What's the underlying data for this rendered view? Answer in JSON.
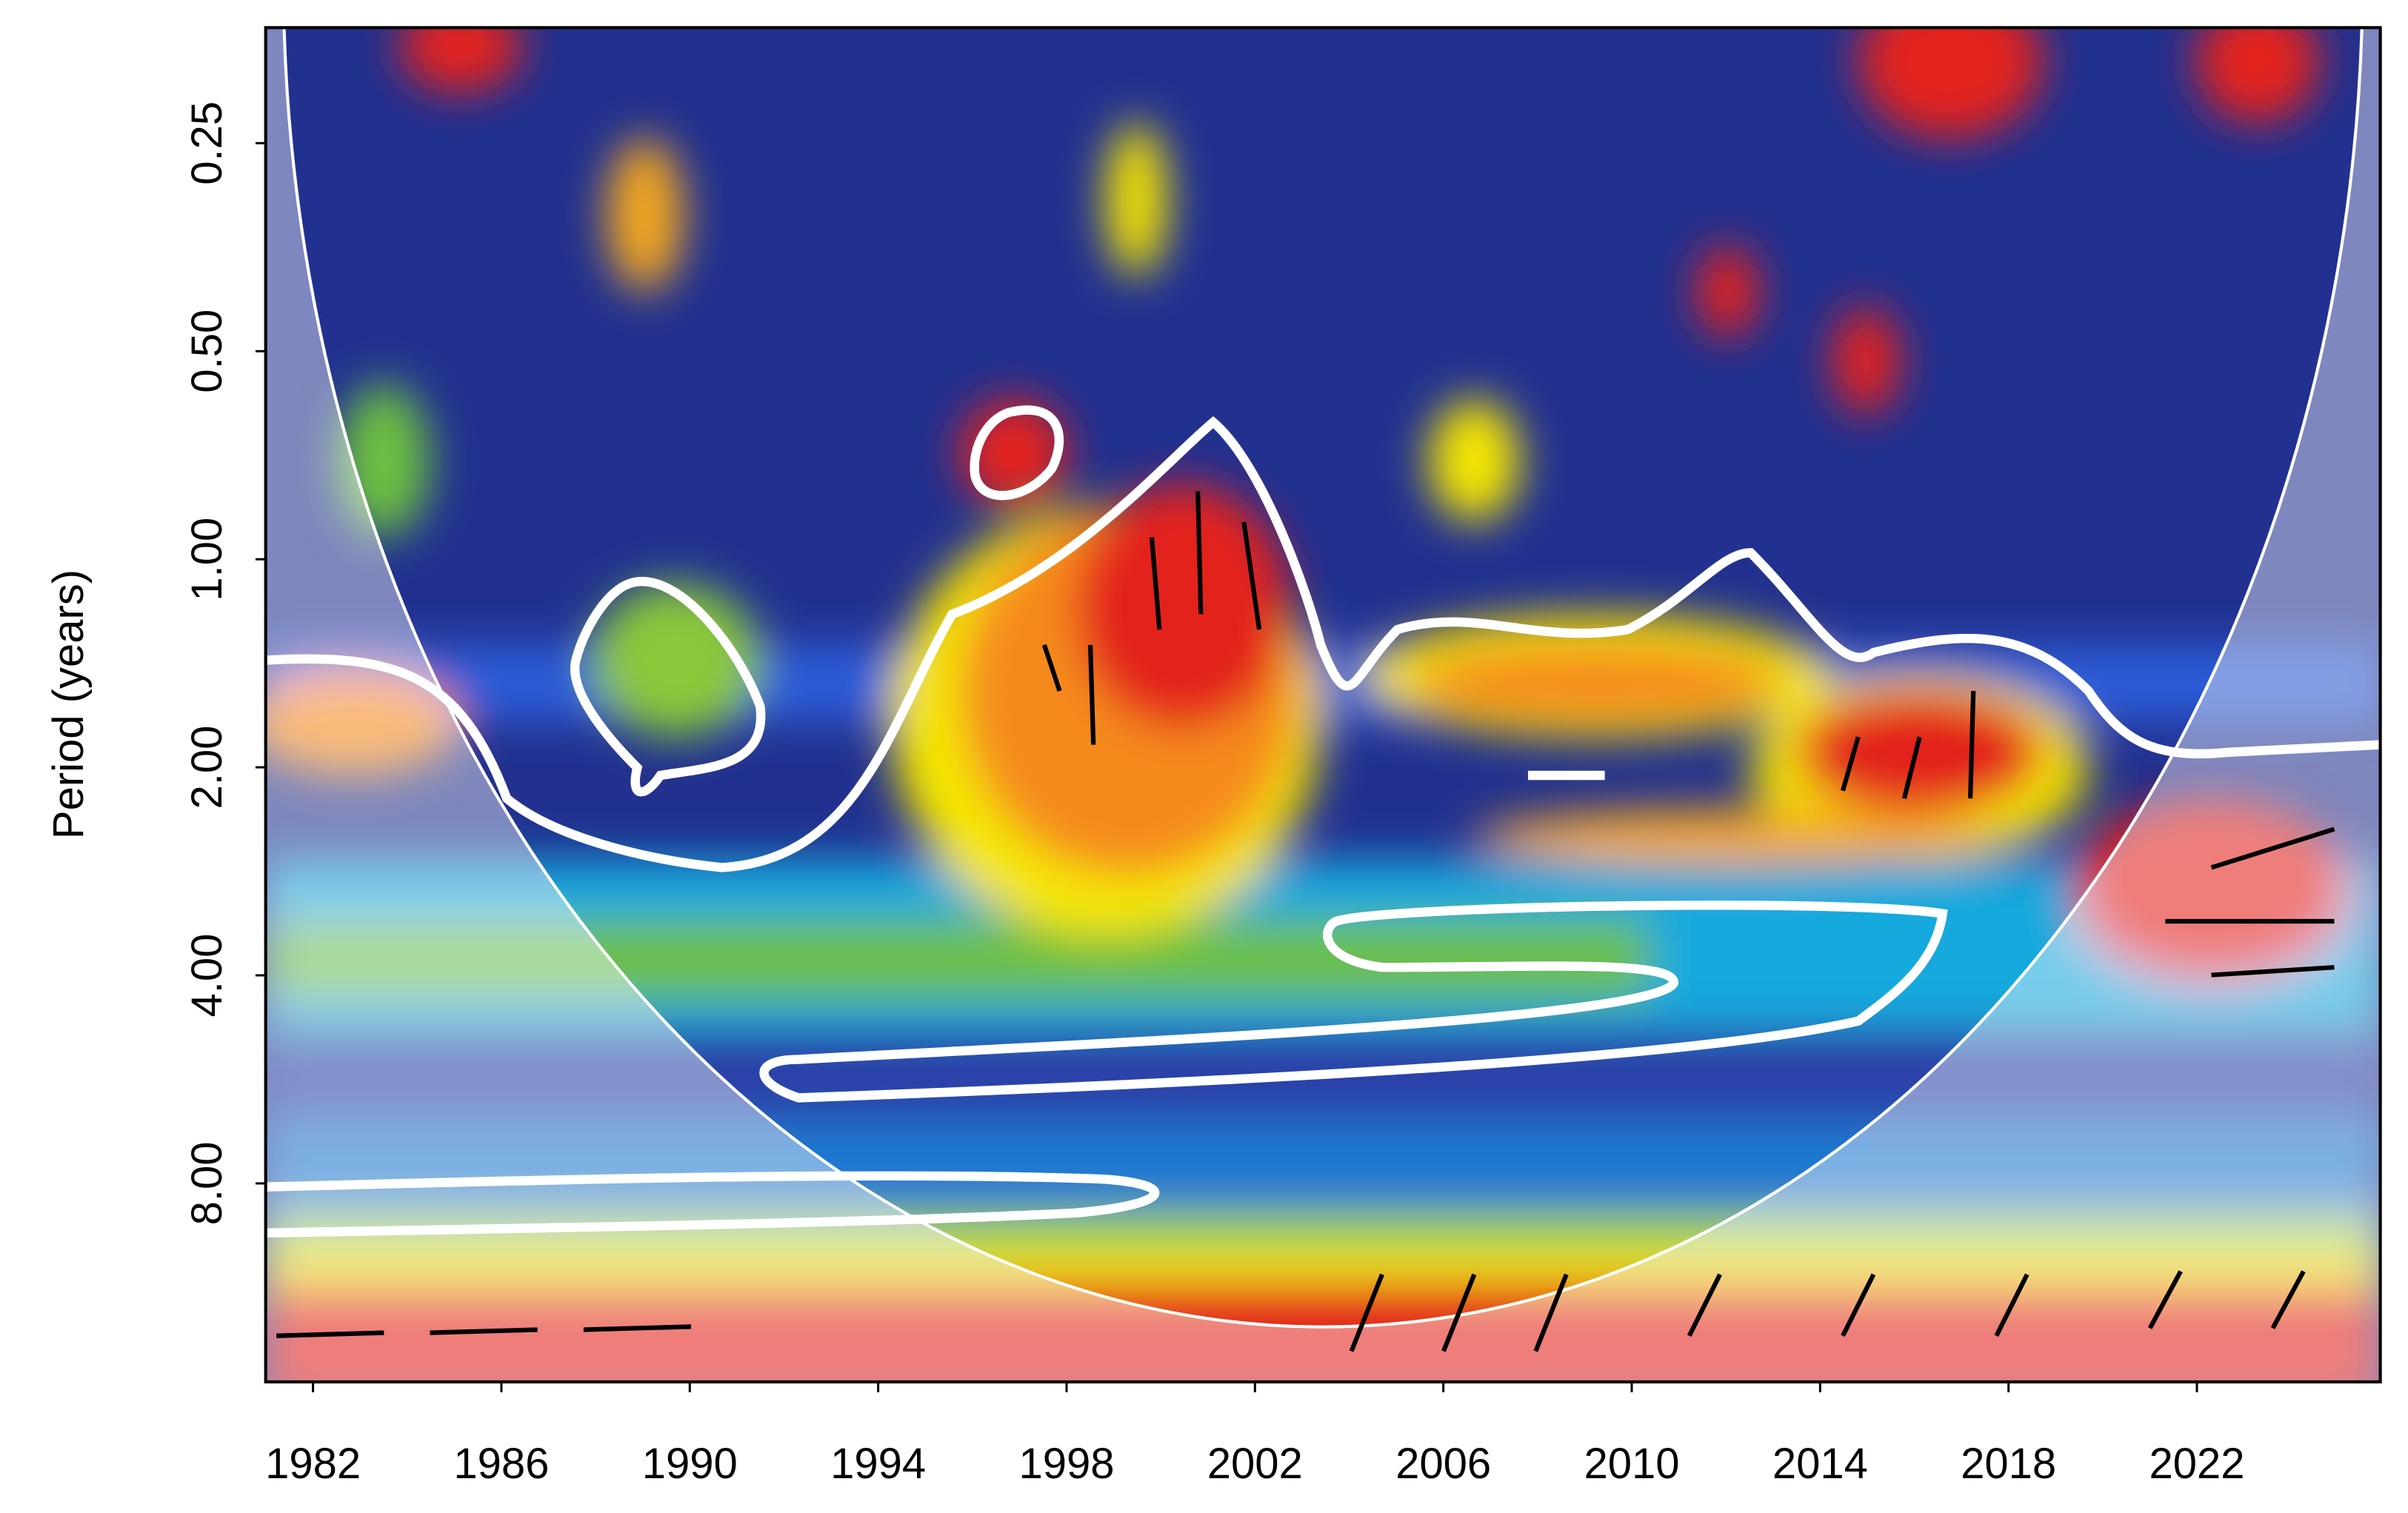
{
  "chart_data": {
    "type": "heatmap",
    "y_label": "Period (years)",
    "xlim": [
      1981,
      2025.9
    ],
    "xticks": [
      1982,
      1986,
      1990,
      1994,
      1998,
      2002,
      2006,
      2010,
      2014,
      2018,
      2022
    ],
    "ylim": [
      0.17,
      15.5
    ],
    "log_y": true,
    "yticks": [
      0.25,
      {
        "value": 0.5,
        "label": "0.50"
      },
      {
        "value": 1,
        "label": "1.00"
      },
      {
        "value": 2,
        "label": "2.00"
      },
      {
        "value": 4,
        "label": "4.00"
      },
      {
        "value": 8,
        "label": "8.00"
      }
    ]
  }
}
